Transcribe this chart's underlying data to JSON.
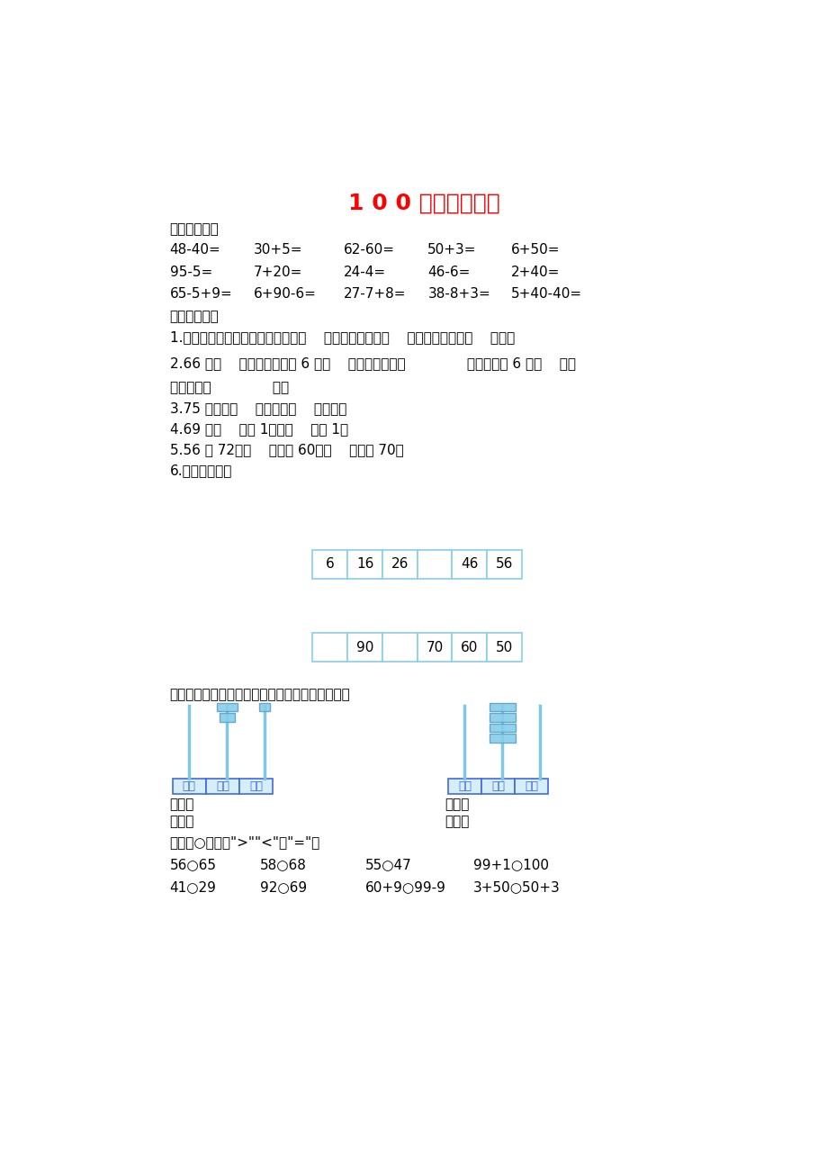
{
  "title": "1 0 0 以内数的认识",
  "title_color": "#FF0000",
  "title_fontsize": 18,
  "bg_color": "#FFFFFF",
  "text_color": "#000000",
  "section1_header": "一、计算题。",
  "calc_rows": [
    [
      "48-40=",
      "30+5=",
      "62-60=",
      "50+3=",
      "6+50="
    ],
    [
      "95-5=",
      "7+20=",
      "24-4=",
      "46-6=",
      "2+40="
    ],
    [
      "65-5+9=",
      "6+90-6=",
      "27-7+8=",
      "38-8+3=",
      "5+40-40="
    ]
  ],
  "section2_header": "二、填空题。",
  "fill_items": [
    "1.计数器上，从右边起，个位是第（    ）位，十位是第（    ）位，第三位是（    ）位。",
    "2.66 是（    ）位数，右边的 6 在（    ）位上，表示（              ），左边的 6 在（    ）位",
    "上，表示（              ）。",
    "3.75 里面有（    ）个十和（    ）个一。",
    "4.69 比（    ）大 1，比（    ）小 1。",
    "5.56 和 72，（    ）接近 60，（    ）接近 70。",
    "6.按规律填数。"
  ],
  "row1_values": [
    "6",
    "16",
    "26",
    "",
    "46",
    "56"
  ],
  "row2_values": [
    "",
    "90",
    "",
    "70",
    "60",
    "50"
  ],
  "section3_header": "三、在计数器上表示图中的数，再按要求填一填。",
  "section4_header": "四、在○里填上\">\"\"<\"或\"=\"。",
  "compare_rows": [
    [
      "56○65",
      "58○68",
      "55○47",
      "99+1○100"
    ],
    [
      "41○29",
      "92○69",
      "60+9○99-9",
      "3+50○50+3"
    ]
  ],
  "box_border_color": "#87CEEB",
  "label_color_blue": "#4169E1",
  "abacus_stick_color": "#7EC8E3",
  "abacus_bead_color": "#87CEEB",
  "abacus_bead_edge": "#5BA3C9",
  "abacus_label_bg": "#D6EEF8"
}
